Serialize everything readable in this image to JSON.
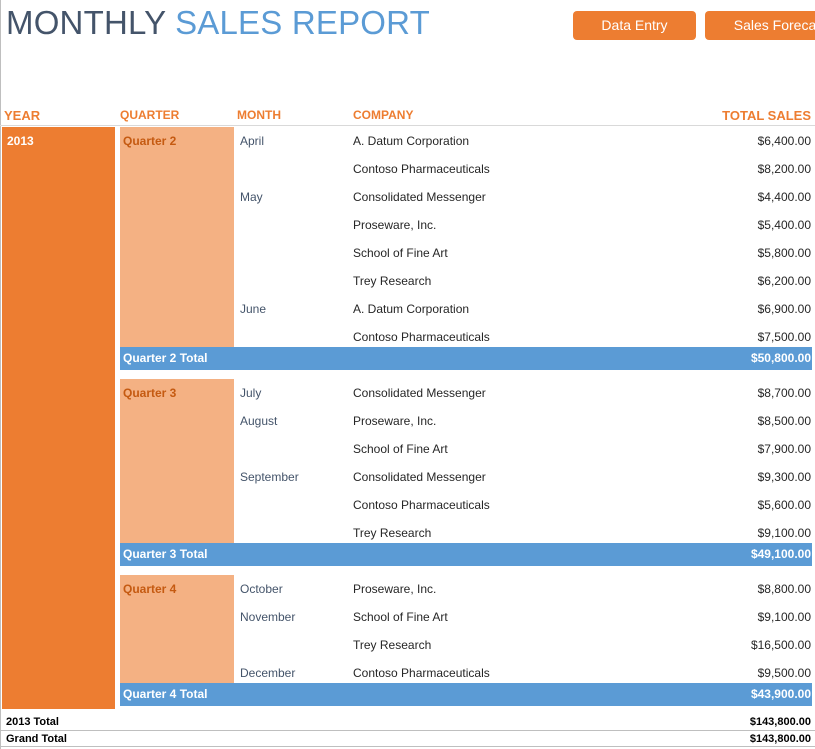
{
  "title": {
    "part1": "MONTHLY ",
    "part2": "SALES REPORT"
  },
  "buttons": {
    "data_entry": "Data Entry",
    "sales_forecast": "Sales Foreca"
  },
  "headers": {
    "year": "YEAR",
    "quarter": "QUARTER",
    "month": "MONTH",
    "company": "COMPANY",
    "total_sales": "TOTAL SALES"
  },
  "year": "2013",
  "quarters": [
    {
      "name": "Quarter 2",
      "rows": [
        {
          "month": "April",
          "company": "A. Datum Corporation",
          "amount": "$6,400.00"
        },
        {
          "month": "",
          "company": "Contoso Pharmaceuticals",
          "amount": "$8,200.00"
        },
        {
          "month": "May",
          "company": "Consolidated Messenger",
          "amount": "$4,400.00"
        },
        {
          "month": "",
          "company": "Proseware, Inc.",
          "amount": "$5,400.00"
        },
        {
          "month": "",
          "company": "School of Fine Art",
          "amount": "$5,800.00"
        },
        {
          "month": "",
          "company": "Trey Research",
          "amount": "$6,200.00"
        },
        {
          "month": "June",
          "company": "A. Datum Corporation",
          "amount": "$6,900.00"
        },
        {
          "month": "",
          "company": "Contoso Pharmaceuticals",
          "amount": "$7,500.00"
        }
      ],
      "total_label": "Quarter 2 Total",
      "total": "$50,800.00"
    },
    {
      "name": "Quarter 3",
      "rows": [
        {
          "month": "July",
          "company": "Consolidated Messenger",
          "amount": "$8,700.00"
        },
        {
          "month": "August",
          "company": "Proseware, Inc.",
          "amount": "$8,500.00"
        },
        {
          "month": "",
          "company": "School of Fine Art",
          "amount": "$7,900.00"
        },
        {
          "month": "September",
          "company": "Consolidated Messenger",
          "amount": "$9,300.00"
        },
        {
          "month": "",
          "company": "Contoso Pharmaceuticals",
          "amount": "$5,600.00"
        },
        {
          "month": "",
          "company": "Trey Research",
          "amount": "$9,100.00"
        }
      ],
      "total_label": "Quarter 3 Total",
      "total": "$49,100.00"
    },
    {
      "name": "Quarter 4",
      "rows": [
        {
          "month": "October",
          "company": "Proseware, Inc.",
          "amount": "$8,800.00"
        },
        {
          "month": "November",
          "company": "School of Fine Art",
          "amount": "$9,100.00"
        },
        {
          "month": "",
          "company": "Trey Research",
          "amount": "$16,500.00"
        },
        {
          "month": "December",
          "company": "Contoso Pharmaceuticals",
          "amount": "$9,500.00"
        }
      ],
      "total_label": "Quarter 4 Total",
      "total": "$43,900.00"
    }
  ],
  "year_total": {
    "label": "2013 Total",
    "amount": "$143,800.00"
  },
  "grand_total": {
    "label": "Grand Total",
    "amount": "$143,800.00"
  },
  "colors": {
    "accent_orange": "#ed7d31",
    "light_orange": "#f4b183",
    "accent_blue": "#5b9bd5",
    "title_dark": "#44546a"
  }
}
